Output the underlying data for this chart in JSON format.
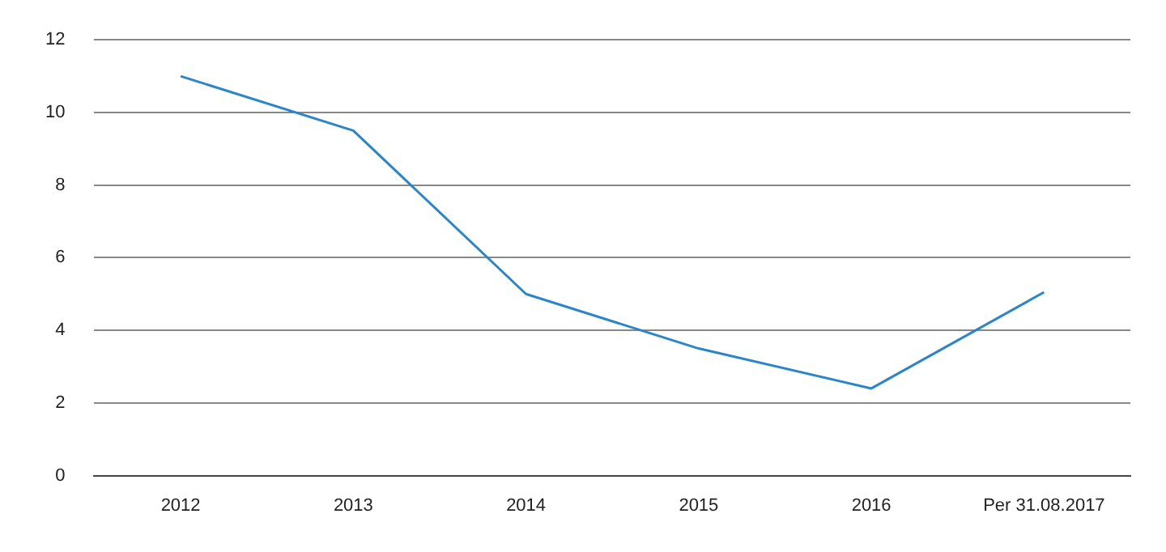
{
  "chart_data": {
    "type": "line",
    "categories": [
      "2012",
      "2013",
      "2014",
      "2015",
      "2016",
      "Per 31.08.2017"
    ],
    "series": [
      {
        "color": "#2a86c8",
        "values": [
          11,
          9.5,
          5,
          3.5,
          2.4,
          5.05
        ]
      }
    ],
    "ylim": [
      0,
      12
    ],
    "yticks": [
      0,
      2,
      4,
      6,
      8,
      10,
      12
    ],
    "grid": "y",
    "legend": false,
    "marker": "none",
    "line_style": "solid"
  }
}
